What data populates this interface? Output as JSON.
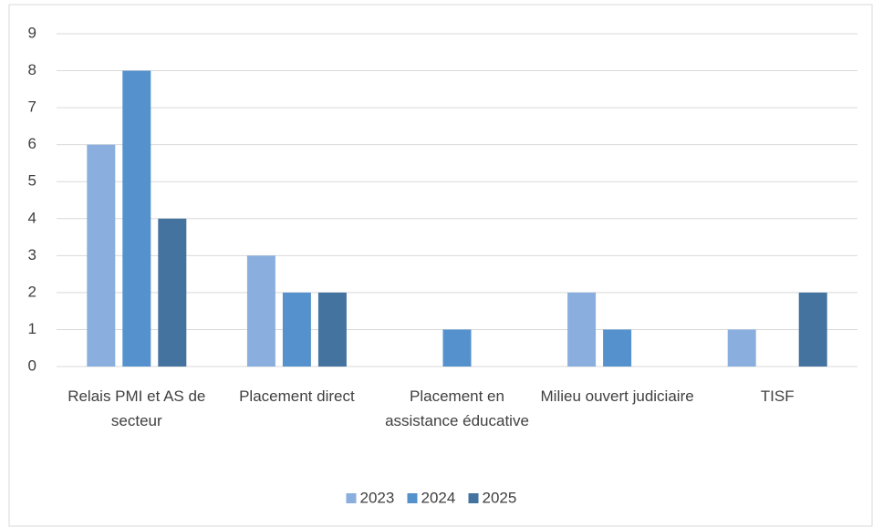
{
  "chart_data": {
    "type": "bar",
    "categories": [
      "Relais PMI et AS de secteur",
      "Placement direct",
      "Placement en assistance éducative",
      "Milieu ouvert judiciaire",
      "TISF"
    ],
    "series": [
      {
        "name": "2023",
        "color": "#8aafde",
        "values": [
          6,
          3,
          0,
          2,
          1
        ]
      },
      {
        "name": "2024",
        "color": "#5591cc",
        "values": [
          8,
          2,
          1,
          1,
          0
        ]
      },
      {
        "name": "2025",
        "color": "#44739f",
        "values": [
          4,
          2,
          0,
          0,
          2
        ]
      }
    ],
    "ylim": [
      0,
      9
    ],
    "yticks": [
      0,
      1,
      2,
      3,
      4,
      5,
      6,
      7,
      8,
      9
    ],
    "grid": true,
    "legend": "bottom"
  }
}
